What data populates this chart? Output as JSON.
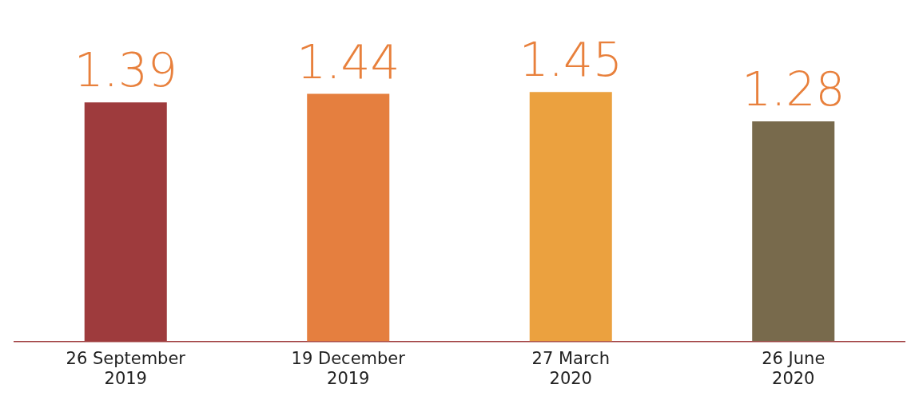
{
  "chart_data": {
    "type": "bar",
    "categories": [
      "26 September 2019",
      "19 December 2019",
      "27 March 2020",
      "26 June 2020"
    ],
    "values": [
      1.39,
      1.44,
      1.45,
      1.28
    ],
    "colors": [
      "#9e3b3d",
      "#e57f3f",
      "#eba13f",
      "#786a4c"
    ],
    "data_labels": true,
    "grid": false,
    "legend": false
  }
}
